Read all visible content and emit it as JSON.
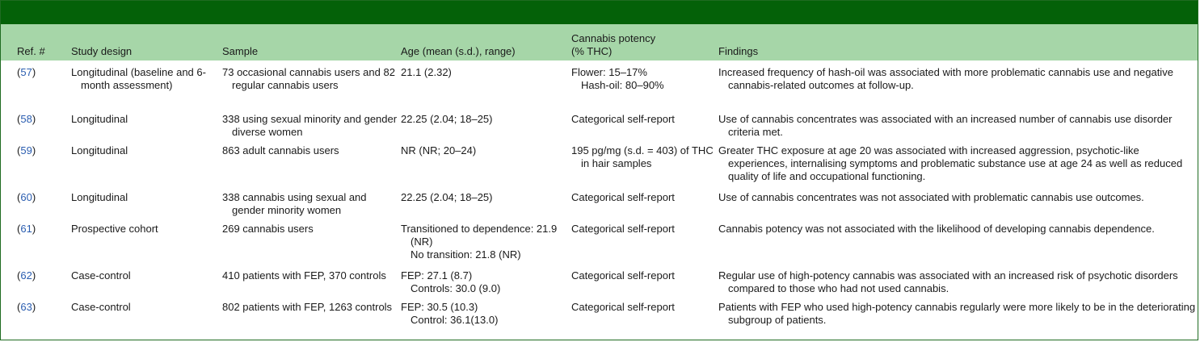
{
  "table": {
    "headers": {
      "ref": "Ref. #",
      "design": "Study design",
      "sample": "Sample",
      "age": "Age (mean (s.d.), range)",
      "potency_line1": "Cannabis potency",
      "potency_line2": "(% THC)",
      "findings": "Findings"
    },
    "rows": [
      {
        "ref": "57",
        "design": "Longitudinal (baseline and 6-month assessment)",
        "sample": "73 occasional cannabis users and 82 regular cannabis users",
        "age": [
          "21.1 (2.32)"
        ],
        "potency": [
          "Flower: 15–17%",
          "Hash-oil: 80–90%"
        ],
        "findings": "Increased frequency of hash-oil was associated with more problematic cannabis use and negative cannabis-related outcomes at follow-up."
      },
      {
        "ref": "58",
        "design": "Longitudinal",
        "sample": "338 using sexual minority and gender diverse women",
        "age": [
          "22.25 (2.04; 18–25)"
        ],
        "potency": [
          "Categorical self-report"
        ],
        "findings": "Use of cannabis concentrates was associated with an increased number of cannabis use disorder criteria met."
      },
      {
        "ref": "59",
        "design": "Longitudinal",
        "sample": "863 adult cannabis users",
        "age": [
          "NR (NR; 20–24)"
        ],
        "potency": [
          "195 pg/mg (s.d. = 403) of THC in hair samples"
        ],
        "findings": "Greater THC exposure at age 20 was associated with increased aggression, psychotic-like experiences, internalising symptoms and problematic substance use at age 24 as well as reduced quality of life and occupational functioning."
      },
      {
        "ref": "60",
        "design": "Longitudinal",
        "sample": "338 cannabis using sexual and gender minority women",
        "age": [
          "22.25 (2.04; 18–25)"
        ],
        "potency": [
          "Categorical self-report"
        ],
        "findings": "Use of cannabis concentrates was not associated with problematic cannabis use outcomes."
      },
      {
        "ref": "61",
        "design": "Prospective cohort",
        "sample": "269 cannabis users",
        "age": [
          "Transitioned to dependence: 21.9 (NR)",
          "No transition: 21.8 (NR)"
        ],
        "potency": [
          "Categorical self-report"
        ],
        "findings": "Cannabis potency was not associated with the likelihood of developing cannabis dependence."
      },
      {
        "ref": "62",
        "design": "Case-control",
        "sample": "410 patients with FEP, 370 controls",
        "age": [
          "FEP: 27.1 (8.7)",
          "Controls: 30.0 (9.0)"
        ],
        "potency": [
          "Categorical self-report"
        ],
        "findings": "Regular use of high-potency cannabis was associated with an increased risk of psychotic disorders compared to those who had not used cannabis."
      },
      {
        "ref": "63",
        "design": "Case-control",
        "sample": "802 patients with FEP, 1263 controls",
        "age": [
          "FEP: 30.5 (10.3)",
          "Control: 36.1(13.0)"
        ],
        "potency": [
          "Categorical self-report"
        ],
        "findings": "Patients with FEP who used high-potency cannabis regularly were more likely to be in the deteriorating subgroup of patients."
      }
    ]
  },
  "colors": {
    "top_bar": "#046108",
    "header_bg": "#a6d6a8",
    "link": "#2a5db0"
  }
}
